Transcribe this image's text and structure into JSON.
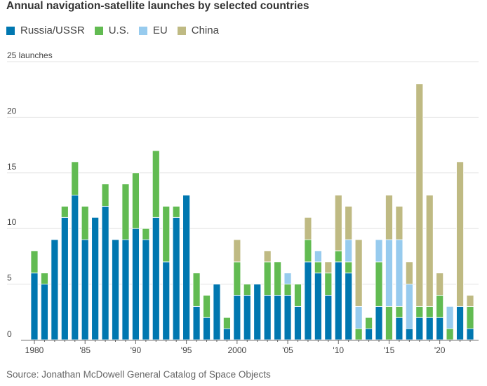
{
  "chart_data": {
    "type": "bar",
    "stacked": true,
    "title": "Annual navigation-satellite launches by selected countries",
    "ylabel": "launches",
    "ylim": [
      0,
      25
    ],
    "yticks": [
      0,
      5,
      10,
      15,
      20,
      25
    ],
    "ytick_labels": [
      "0",
      "5",
      "10",
      "15",
      "20",
      "25 launches"
    ],
    "xtick_years": [
      1980,
      1985,
      1990,
      1995,
      2000,
      2005,
      2010,
      2015,
      2020
    ],
    "xtick_labels": [
      "1980",
      "'85",
      "'90",
      "'95",
      "2000",
      "'05",
      "'10",
      "'15",
      "'20"
    ],
    "grid": true,
    "legend_position": "top-left",
    "categories": [
      1980,
      1981,
      1982,
      1983,
      1984,
      1985,
      1986,
      1987,
      1988,
      1989,
      1990,
      1991,
      1992,
      1993,
      1994,
      1995,
      1996,
      1997,
      1998,
      1999,
      2000,
      2001,
      2002,
      2003,
      2004,
      2005,
      2006,
      2007,
      2008,
      2009,
      2010,
      2011,
      2012,
      2013,
      2014,
      2015,
      2016,
      2017,
      2018,
      2019,
      2020,
      2021,
      2022,
      2023
    ],
    "series": [
      {
        "name": "Russia/USSR",
        "color": "#0077b0",
        "values": [
          6,
          5,
          9,
          11,
          13,
          9,
          11,
          12,
          9,
          9,
          10,
          9,
          11,
          7,
          11,
          13,
          3,
          2,
          5,
          1,
          4,
          4,
          5,
          4,
          4,
          4,
          3,
          7,
          6,
          4,
          7,
          6,
          0,
          1,
          3,
          0,
          2,
          1,
          2,
          2,
          2,
          0,
          3,
          1
        ]
      },
      {
        "name": "U.S.",
        "color": "#62bb52",
        "values": [
          2,
          1,
          0,
          1,
          3,
          3,
          0,
          2,
          0,
          5,
          5,
          1,
          6,
          5,
          1,
          0,
          3,
          2,
          0,
          1,
          3,
          1,
          0,
          3,
          3,
          1,
          2,
          2,
          1,
          2,
          1,
          1,
          1,
          1,
          4,
          3,
          1,
          0,
          1,
          1,
          2,
          1,
          0,
          2
        ]
      },
      {
        "name": "EU",
        "color": "#97cbee",
        "values": [
          0,
          0,
          0,
          0,
          0,
          0,
          0,
          0,
          0,
          0,
          0,
          0,
          0,
          0,
          0,
          0,
          0,
          0,
          0,
          0,
          0,
          0,
          0,
          0,
          0,
          1,
          0,
          0,
          1,
          0,
          0,
          2,
          2,
          0,
          2,
          6,
          6,
          4,
          0,
          0,
          0,
          2,
          0,
          0
        ]
      },
      {
        "name": "China",
        "color": "#bfba83",
        "values": [
          0,
          0,
          0,
          0,
          0,
          0,
          0,
          0,
          0,
          0,
          0,
          0,
          0,
          0,
          0,
          0,
          0,
          0,
          0,
          0,
          2,
          0,
          0,
          1,
          0,
          0,
          0,
          2,
          0,
          1,
          5,
          3,
          6,
          0,
          0,
          4,
          3,
          2,
          20,
          10,
          2,
          0,
          13,
          1
        ]
      }
    ],
    "source": "Source: Jonathan McDowell General Catalog of Space Objects"
  }
}
